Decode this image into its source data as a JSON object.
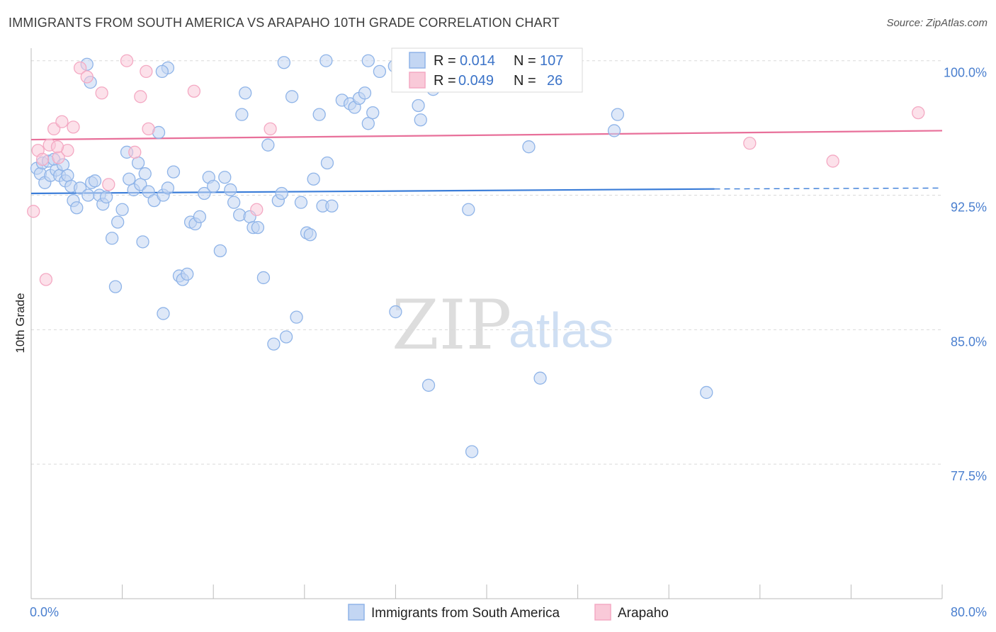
{
  "title": "IMMIGRANTS FROM SOUTH AMERICA VS ARAPAHO 10TH GRADE CORRELATION CHART",
  "source": "Source: ZipAtlas.com",
  "watermark": {
    "part1": "ZIP",
    "part2": "atlas"
  },
  "chart_data": {
    "type": "scatter",
    "title": "IMMIGRANTS FROM SOUTH AMERICA VS ARAPAHO 10TH GRADE CORRELATION CHART",
    "xlabel": "",
    "ylabel": "10th Grade",
    "xlim": [
      0,
      80
    ],
    "ylim": [
      70,
      100.7
    ],
    "x_tick_labels": [
      {
        "value": 0,
        "label": "0.0%"
      },
      {
        "value": 80,
        "label": "80.0%"
      }
    ],
    "y_tick_labels": [
      {
        "value": 100,
        "label": "100.0%"
      },
      {
        "value": 92.5,
        "label": "92.5%"
      },
      {
        "value": 85,
        "label": "85.0%"
      },
      {
        "value": 77.5,
        "label": "77.5%"
      }
    ],
    "legend": {
      "r_label": "R =",
      "n_label": "N =",
      "entries": [
        {
          "r": "0.014",
          "n": "107"
        },
        {
          "r": "0.049",
          "n": "26"
        }
      ]
    },
    "series": [
      {
        "name": "Immigrants from South America",
        "color": "#8fb4e8",
        "line_color": "#3b7dd8",
        "trend": {
          "x0": 0,
          "y0": 92.6,
          "x1": 60,
          "y1": 92.85,
          "dashed_to": 80,
          "dashed_y": 92.9
        },
        "points": [
          [
            0.5,
            94.0
          ],
          [
            0.8,
            93.7
          ],
          [
            1.0,
            94.3
          ],
          [
            1.2,
            93.2
          ],
          [
            1.5,
            94.4
          ],
          [
            1.7,
            93.6
          ],
          [
            2.0,
            94.5
          ],
          [
            2.2,
            93.9
          ],
          [
            2.5,
            93.6
          ],
          [
            2.8,
            94.2
          ],
          [
            3.0,
            93.3
          ],
          [
            3.2,
            93.6
          ],
          [
            3.5,
            93.0
          ],
          [
            3.7,
            92.2
          ],
          [
            4.0,
            91.8
          ],
          [
            4.3,
            92.9
          ],
          [
            5.0,
            92.5
          ],
          [
            5.3,
            93.2
          ],
          [
            5.6,
            93.3
          ],
          [
            6.0,
            92.5
          ],
          [
            6.3,
            92.0
          ],
          [
            6.6,
            92.4
          ],
          [
            7.1,
            90.1
          ],
          [
            7.6,
            91.0
          ],
          [
            8.0,
            91.7
          ],
          [
            8.6,
            93.4
          ],
          [
            9.0,
            92.8
          ],
          [
            9.4,
            94.3
          ],
          [
            9.6,
            93.1
          ],
          [
            10.0,
            93.7
          ],
          [
            10.3,
            92.7
          ],
          [
            10.8,
            92.2
          ],
          [
            11.2,
            96.0
          ],
          [
            11.6,
            92.5
          ],
          [
            12.0,
            92.9
          ],
          [
            12.5,
            93.8
          ],
          [
            13.0,
            88.0
          ],
          [
            13.3,
            87.8
          ],
          [
            14.0,
            91.0
          ],
          [
            14.4,
            90.9
          ],
          [
            14.8,
            91.3
          ],
          [
            15.2,
            92.6
          ],
          [
            15.6,
            93.5
          ],
          [
            16.0,
            93.0
          ],
          [
            16.6,
            89.4
          ],
          [
            17.0,
            93.5
          ],
          [
            17.5,
            92.8
          ],
          [
            17.8,
            92.1
          ],
          [
            18.3,
            91.4
          ],
          [
            18.5,
            97.0
          ],
          [
            18.8,
            98.2
          ],
          [
            19.2,
            91.3
          ],
          [
            19.5,
            90.7
          ],
          [
            19.9,
            90.7
          ],
          [
            20.4,
            87.9
          ],
          [
            20.8,
            95.3
          ],
          [
            21.3,
            84.2
          ],
          [
            21.7,
            92.2
          ],
          [
            22.0,
            92.6
          ],
          [
            22.4,
            84.6
          ],
          [
            22.9,
            98.0
          ],
          [
            23.3,
            85.7
          ],
          [
            23.7,
            92.1
          ],
          [
            24.2,
            90.4
          ],
          [
            24.5,
            90.3
          ],
          [
            24.8,
            93.4
          ],
          [
            25.3,
            97.0
          ],
          [
            25.6,
            91.9
          ],
          [
            26.0,
            94.3
          ],
          [
            26.4,
            91.9
          ],
          [
            27.3,
            97.8
          ],
          [
            28.0,
            97.6
          ],
          [
            28.4,
            97.4
          ],
          [
            28.8,
            97.9
          ],
          [
            29.3,
            98.2
          ],
          [
            29.6,
            96.5
          ],
          [
            30.0,
            97.1
          ],
          [
            30.6,
            99.4
          ],
          [
            31.9,
            99.7
          ],
          [
            32.0,
            86.0
          ],
          [
            33.0,
            98.6
          ],
          [
            34.0,
            97.5
          ],
          [
            34.2,
            96.7
          ],
          [
            34.9,
            81.9
          ],
          [
            35.3,
            98.4
          ],
          [
            36.0,
            99.0
          ],
          [
            37.0,
            98.9
          ],
          [
            38.4,
            91.7
          ],
          [
            38.7,
            78.2
          ],
          [
            43.7,
            95.2
          ],
          [
            44.7,
            82.3
          ],
          [
            45.2,
            99.6
          ],
          [
            51.2,
            96.1
          ],
          [
            51.5,
            97.0
          ],
          [
            59.3,
            81.5
          ],
          [
            22.2,
            99.9
          ],
          [
            25.9,
            100.0
          ],
          [
            29.6,
            100.0
          ],
          [
            12.0,
            99.6
          ],
          [
            4.9,
            99.8
          ],
          [
            11.5,
            99.4
          ],
          [
            5.2,
            98.8
          ],
          [
            8.4,
            94.9
          ],
          [
            13.7,
            88.1
          ],
          [
            7.4,
            87.4
          ],
          [
            9.8,
            89.9
          ],
          [
            11.6,
            85.9
          ]
        ]
      },
      {
        "name": "Arapaho",
        "color": "#f4a9c3",
        "line_color": "#e8709a",
        "trend": {
          "x0": 0,
          "y0": 95.6,
          "x1": 80,
          "y1": 96.1
        },
        "points": [
          [
            0.2,
            91.6
          ],
          [
            0.6,
            95.0
          ],
          [
            1.0,
            94.5
          ],
          [
            1.3,
            87.8
          ],
          [
            1.6,
            95.3
          ],
          [
            2.0,
            96.2
          ],
          [
            2.4,
            94.6
          ],
          [
            2.7,
            96.6
          ],
          [
            3.2,
            95.0
          ],
          [
            3.7,
            96.3
          ],
          [
            4.3,
            99.6
          ],
          [
            4.9,
            99.1
          ],
          [
            6.2,
            98.2
          ],
          [
            6.8,
            93.1
          ],
          [
            8.4,
            100.0
          ],
          [
            9.1,
            94.9
          ],
          [
            9.6,
            98.0
          ],
          [
            10.1,
            99.4
          ],
          [
            10.3,
            96.2
          ],
          [
            14.3,
            98.3
          ],
          [
            19.8,
            91.7
          ],
          [
            21.0,
            96.2
          ],
          [
            63.1,
            95.4
          ],
          [
            70.4,
            94.4
          ],
          [
            77.9,
            97.1
          ],
          [
            2.3,
            95.2
          ]
        ]
      }
    ]
  }
}
